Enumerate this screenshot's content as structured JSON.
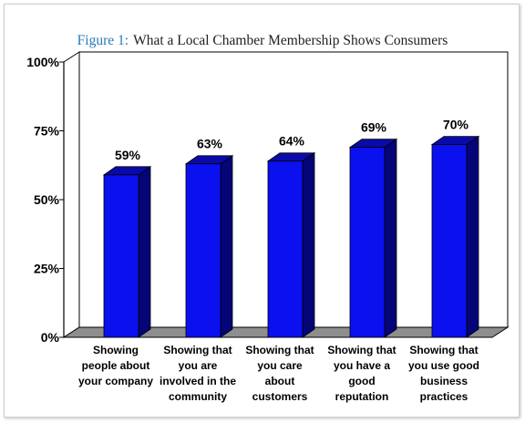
{
  "chart_data": {
    "type": "bar",
    "title_prefix": "Figure 1:",
    "title": "What a Local Chamber Membership Shows Consumers",
    "categories": [
      [
        "Showing",
        "people about",
        "your company"
      ],
      [
        "Showing that",
        "you are",
        "involved in the",
        "community"
      ],
      [
        "Showing that",
        "you care",
        "about",
        "customers"
      ],
      [
        "Showing that",
        "you have a",
        "good",
        "reputation"
      ],
      [
        "Showing that",
        "you use good",
        "business",
        "practices"
      ]
    ],
    "values": [
      59,
      63,
      64,
      69,
      70
    ],
    "data_labels": [
      "59%",
      "63%",
      "64%",
      "69%",
      "70%"
    ],
    "yticks": [
      0,
      25,
      50,
      75,
      100
    ],
    "ytick_labels": [
      "0%",
      "25%",
      "50%",
      "75%",
      "100%"
    ],
    "ylim": [
      0,
      100
    ],
    "xlabel": "",
    "ylabel": "",
    "grid": false,
    "legend": "none",
    "colors": {
      "bar_front": "#0a10ee",
      "bar_side": "#050578",
      "bar_top": "#0a0aa8",
      "floor": "#8e8e8e",
      "title_prefix": "#2a79b8"
    }
  }
}
